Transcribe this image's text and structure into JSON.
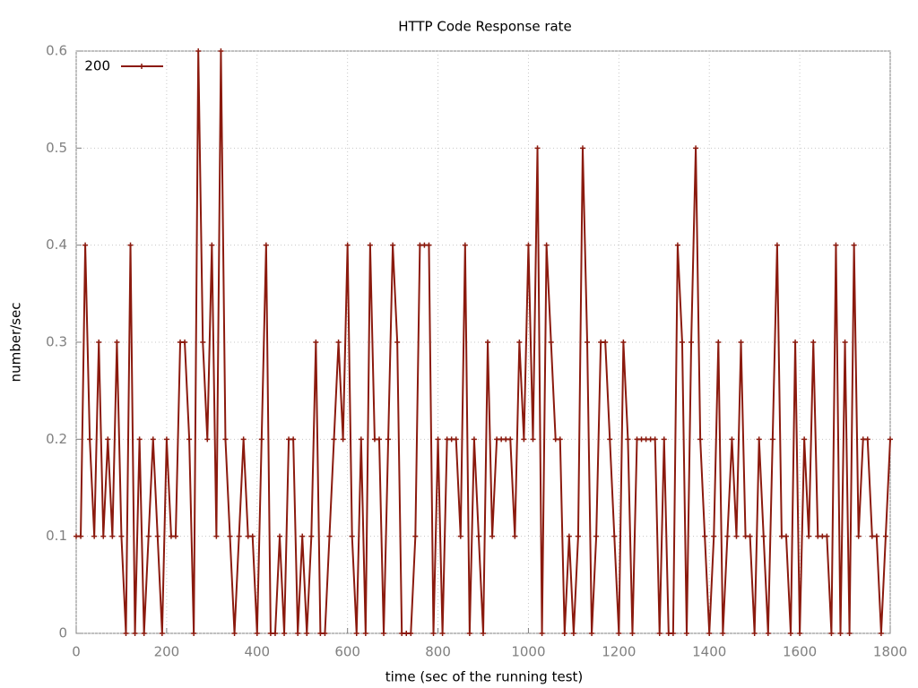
{
  "chart_data": {
    "type": "line",
    "title": "HTTP Code Response rate",
    "xlabel": "time (sec of the running test)",
    "ylabel": "number/sec",
    "x": [
      0,
      10,
      20,
      30,
      40,
      50,
      60,
      70,
      80,
      90,
      100,
      110,
      120,
      130,
      140,
      150,
      160,
      170,
      180,
      190,
      200,
      210,
      220,
      230,
      240,
      250,
      260,
      270,
      280,
      290,
      300,
      310,
      320,
      330,
      340,
      350,
      360,
      370,
      380,
      390,
      400,
      410,
      420,
      430,
      440,
      450,
      460,
      470,
      480,
      490,
      500,
      510,
      520,
      530,
      540,
      550,
      560,
      570,
      580,
      590,
      600,
      610,
      620,
      630,
      640,
      650,
      660,
      670,
      680,
      690,
      700,
      710,
      720,
      730,
      740,
      750,
      760,
      770,
      780,
      790,
      800,
      810,
      820,
      830,
      840,
      850,
      860,
      870,
      880,
      890,
      900,
      910,
      920,
      930,
      940,
      950,
      960,
      970,
      980,
      990,
      1000,
      1010,
      1020,
      1030,
      1040,
      1050,
      1060,
      1070,
      1080,
      1090,
      1100,
      1110,
      1120,
      1130,
      1140,
      1150,
      1160,
      1170,
      1180,
      1190,
      1200,
      1210,
      1220,
      1230,
      1240,
      1250,
      1260,
      1270,
      1280,
      1290,
      1300,
      1310,
      1320,
      1330,
      1340,
      1350,
      1360,
      1370,
      1380,
      1390,
      1400,
      1410,
      1420,
      1430,
      1440,
      1450,
      1460,
      1470,
      1480,
      1490,
      1500,
      1510,
      1520,
      1530,
      1540,
      1550,
      1560,
      1570,
      1580,
      1590,
      1600,
      1610,
      1620,
      1630,
      1640,
      1650,
      1660,
      1670,
      1680,
      1690,
      1700,
      1710,
      1720,
      1730,
      1740,
      1750,
      1760,
      1770,
      1780,
      1790,
      1800
    ],
    "series": [
      {
        "name": "200",
        "color": "#8b1a0e",
        "values": [
          0.1,
          0.1,
          0.4,
          0.2,
          0.1,
          0.3,
          0.1,
          0.2,
          0.1,
          0.3,
          0.1,
          0,
          0.4,
          0,
          0.2,
          0,
          0.1,
          0.2,
          0.1,
          0,
          0.2,
          0.1,
          0.1,
          0.3,
          0.3,
          0.2,
          0,
          0.6,
          0.3,
          0.2,
          0.4,
          0.1,
          0.6,
          0.2,
          0.1,
          0,
          0.1,
          0.2,
          0.1,
          0.1,
          0,
          0.2,
          0.4,
          0,
          0,
          0.1,
          0,
          0.2,
          0.2,
          0,
          0.1,
          0,
          0.1,
          0.3,
          0,
          0,
          0.1,
          0.2,
          0.3,
          0.2,
          0.4,
          0.1,
          0,
          0.2,
          0,
          0.4,
          0.2,
          0.2,
          0,
          0.2,
          0.4,
          0.3,
          0,
          0,
          0,
          0.1,
          0.4,
          0.4,
          0.4,
          0,
          0.2,
          0,
          0.2,
          0.2,
          0.2,
          0.1,
          0.4,
          0,
          0.2,
          0.1,
          0,
          0.3,
          0.1,
          0.2,
          0.2,
          0.2,
          0.2,
          0.1,
          0.3,
          0.2,
          0.4,
          0.2,
          0.5,
          0,
          0.4,
          0.3,
          0.2,
          0.2,
          0,
          0.1,
          0,
          0.1,
          0.5,
          0.3,
          0,
          0.1,
          0.3,
          0.3,
          0.2,
          0.1,
          0,
          0.3,
          0.2,
          0,
          0.2,
          0.2,
          0.2,
          0.2,
          0.2,
          0,
          0.2,
          0,
          0,
          0.4,
          0.3,
          0,
          0.3,
          0.5,
          0.2,
          0.1,
          0,
          0.1,
          0.3,
          0,
          0.1,
          0.2,
          0.1,
          0.3,
          0.1,
          0.1,
          0,
          0.2,
          0.1,
          0,
          0.2,
          0.4,
          0.1,
          0.1,
          0,
          0.3,
          0,
          0.2,
          0.1,
          0.3,
          0.1,
          0.1,
          0.1,
          0,
          0.4,
          0,
          0.3,
          0,
          0.4,
          0.1,
          0.2,
          0.2,
          0.1,
          0.1,
          0,
          0.1,
          0.2
        ]
      }
    ],
    "xlim": [
      0,
      1800
    ],
    "xticks": [
      0,
      200,
      400,
      600,
      800,
      1000,
      1200,
      1400,
      1600,
      1800
    ],
    "ylim": [
      0,
      0.6
    ],
    "yticks": [
      0,
      0.1,
      0.2,
      0.3,
      0.4,
      0.5,
      0.6
    ],
    "grid": true,
    "legend": "top-left"
  }
}
